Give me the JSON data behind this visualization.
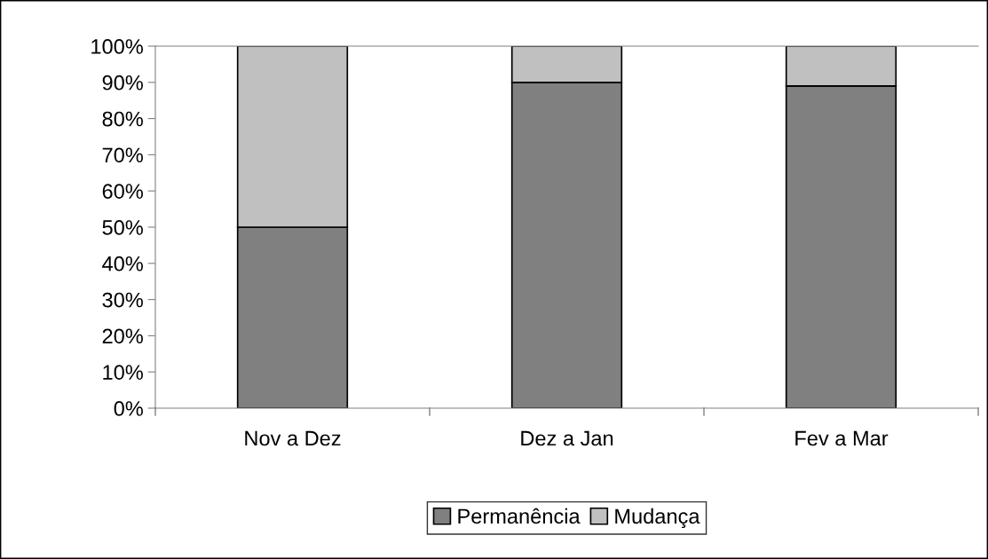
{
  "chart_data": {
    "type": "bar",
    "stacked": true,
    "categories": [
      "Nov a Dez",
      "Dez a Jan",
      "Fev a Mar"
    ],
    "series": [
      {
        "name": "Permanência",
        "color": "#808080",
        "values": [
          50,
          90,
          89
        ]
      },
      {
        "name": "Mudança",
        "color": "#c0c0c0",
        "values": [
          50,
          10,
          11
        ]
      }
    ],
    "ylim": [
      0,
      100
    ],
    "yticks": [
      {
        "value": 0,
        "label": "0%"
      },
      {
        "value": 10,
        "label": "10%"
      },
      {
        "value": 20,
        "label": "20%"
      },
      {
        "value": 30,
        "label": "30%"
      },
      {
        "value": 40,
        "label": "40%"
      },
      {
        "value": 50,
        "label": "50%"
      },
      {
        "value": 60,
        "label": "60%"
      },
      {
        "value": 70,
        "label": "70%"
      },
      {
        "value": 80,
        "label": "80%"
      },
      {
        "value": 90,
        "label": "90%"
      },
      {
        "value": 100,
        "label": "100%"
      }
    ],
    "grid": false,
    "legend": "bottom"
  }
}
